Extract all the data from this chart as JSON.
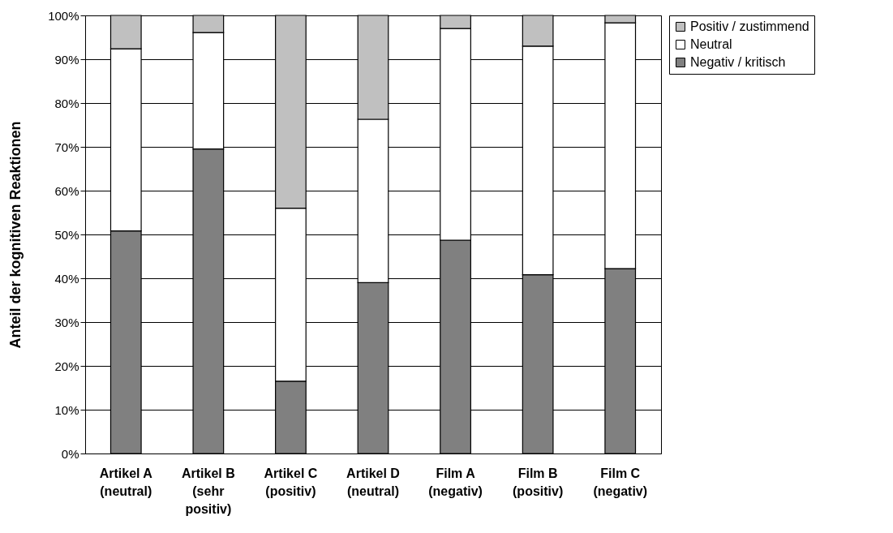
{
  "chart_data": {
    "type": "bar",
    "stacked": true,
    "ylabel": "Anteil der kognitiven Reaktionen",
    "categories": [
      "Artikel A\n(neutral)",
      "Artikel B\n(sehr\npositiv)",
      "Artikel C\n(positiv)",
      "Artikel D\n(neutral)",
      "Film A\n(negativ)",
      "Film B\n(positiv)",
      "Film C\n(negativ)"
    ],
    "series": [
      {
        "name": "Negativ / kritisch",
        "color": "#808080",
        "values": [
          50.8,
          69.5,
          16.5,
          39.0,
          48.7,
          40.8,
          42.2
        ]
      },
      {
        "name": "Neutral",
        "color": "#ffffff",
        "values": [
          41.6,
          26.6,
          39.5,
          37.3,
          48.3,
          52.2,
          56.1
        ]
      },
      {
        "name": "Positiv / zustimmend",
        "color": "#c0c0c0",
        "values": [
          7.6,
          3.9,
          44.0,
          23.7,
          3.0,
          7.0,
          1.7
        ]
      }
    ],
    "ylim": [
      0,
      100
    ],
    "yticks": [
      {
        "value": 0,
        "label": "0%"
      },
      {
        "value": 10,
        "label": "10%"
      },
      {
        "value": 20,
        "label": "20%"
      },
      {
        "value": 30,
        "label": "30%"
      },
      {
        "value": 40,
        "label": "40%"
      },
      {
        "value": 50,
        "label": "50%"
      },
      {
        "value": 60,
        "label": "60%"
      },
      {
        "value": 70,
        "label": "70%"
      },
      {
        "value": 80,
        "label": "80%"
      },
      {
        "value": 90,
        "label": "90%"
      },
      {
        "value": 100,
        "label": "100%"
      }
    ],
    "grid": "y",
    "legend": "right"
  }
}
